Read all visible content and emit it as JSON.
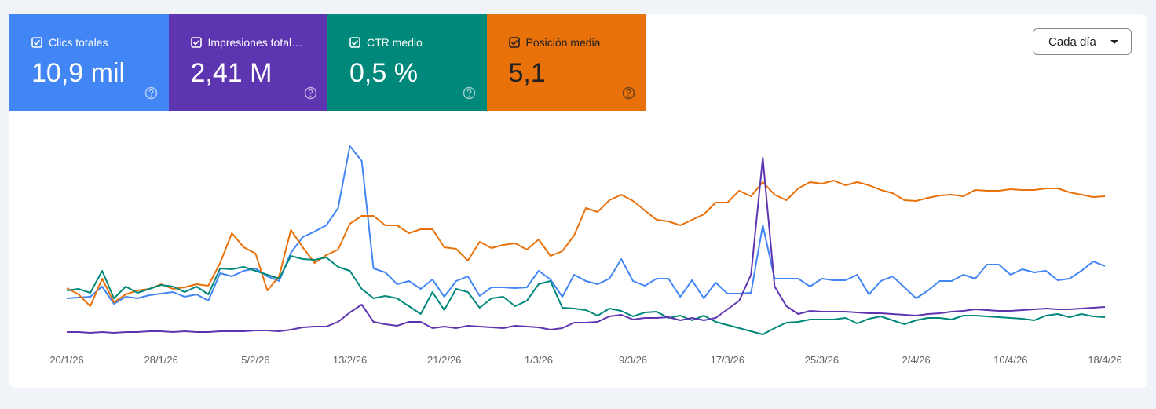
{
  "chart_data": {
    "type": "line",
    "categories": [
      "20/1/26",
      null,
      null,
      null,
      null,
      null,
      null,
      null,
      "28/1/26",
      null,
      null,
      null,
      null,
      null,
      null,
      null,
      "5/2/26",
      null,
      null,
      null,
      null,
      null,
      null,
      null,
      "13/2/26",
      null,
      null,
      null,
      null,
      null,
      null,
      null,
      "21/2/26",
      null,
      null,
      null,
      null,
      null,
      null,
      null,
      "1/3/26",
      null,
      null,
      null,
      null,
      null,
      null,
      null,
      "9/3/26",
      null,
      null,
      null,
      null,
      null,
      null,
      null,
      "17/3/26",
      null,
      null,
      null,
      null,
      null,
      null,
      null,
      "25/3/26",
      null,
      null,
      null,
      null,
      null,
      null,
      null,
      "2/4/26",
      null,
      null,
      null,
      null,
      null,
      null,
      null,
      "10/4/26",
      null,
      null,
      null,
      null,
      null,
      null,
      null,
      "18/4/26"
    ],
    "ylim": [
      0,
      260
    ],
    "series": [
      {
        "name": "Clics totales",
        "summary": "10,9 mil",
        "color": "#4285f4",
        "text_color": "#ffffff",
        "values": [
          60,
          61,
          62,
          75,
          53,
          62,
          60,
          64,
          66,
          68,
          62,
          65,
          57,
          92,
          88,
          95,
          98,
          88,
          82,
          118,
          138,
          145,
          153,
          175,
          254,
          235,
          98,
          93,
          78,
          82,
          72,
          84,
          62,
          82,
          88,
          63,
          74,
          74,
          73,
          74,
          95,
          84,
          62,
          90,
          82,
          78,
          85,
          110,
          82,
          76,
          85,
          85,
          62,
          83,
          60,
          80,
          66,
          66,
          67,
          153,
          85,
          85,
          85,
          75,
          85,
          83,
          83,
          90,
          65,
          82,
          88,
          74,
          60,
          70,
          82,
          82,
          90,
          85,
          103,
          103,
          90,
          97,
          93,
          95,
          83,
          85,
          95,
          107,
          101
        ]
      },
      {
        "name": "Impresiones total…",
        "summary": "2,41 M",
        "color": "#5e35b1",
        "text_color": "#ffffff",
        "values": [
          17,
          17,
          16,
          17,
          16,
          17,
          17,
          18,
          18,
          17,
          18,
          17,
          17,
          18,
          18,
          18,
          19,
          19,
          18,
          20,
          23,
          24,
          24,
          30,
          42,
          52,
          30,
          27,
          25,
          30,
          30,
          22,
          24,
          22,
          25,
          24,
          23,
          22,
          25,
          24,
          23,
          20,
          22,
          29,
          29,
          30,
          37,
          39,
          33,
          35,
          35,
          36,
          32,
          35,
          32,
          35,
          46,
          57,
          90,
          239,
          75,
          50,
          40,
          44,
          43,
          43,
          43,
          42,
          41,
          41,
          40,
          39,
          38,
          40,
          41,
          43,
          44,
          46,
          45,
          44,
          44,
          45,
          46,
          47,
          46,
          46,
          47,
          48,
          49
        ]
      },
      {
        "name": "CTR medio",
        "summary": "0,5 %",
        "color": "#00897b",
        "text_color": "#ffffff",
        "values": [
          70,
          72,
          67,
          95,
          60,
          75,
          67,
          72,
          77,
          75,
          68,
          75,
          65,
          98,
          97,
          100,
          95,
          90,
          85,
          114,
          110,
          109,
          112,
          100,
          95,
          72,
          60,
          63,
          60,
          50,
          40,
          68,
          45,
          72,
          68,
          48,
          60,
          62,
          50,
          57,
          78,
          82,
          48,
          47,
          45,
          38,
          47,
          44,
          37,
          42,
          43,
          35,
          38,
          32,
          38,
          30,
          26,
          22,
          18,
          14,
          22,
          29,
          30,
          33,
          33,
          33,
          35,
          28,
          34,
          37,
          32,
          27,
          32,
          35,
          35,
          33,
          38,
          38,
          37,
          36,
          35,
          34,
          32,
          38,
          40,
          36,
          40,
          37,
          36
        ]
      },
      {
        "name": "Posición media",
        "summary": "5,1",
        "color": "#e8710a",
        "text_color": "#202124",
        "values": [
          73,
          65,
          50,
          85,
          55,
          65,
          70,
          72,
          78,
          72,
          74,
          78,
          76,
          105,
          143,
          125,
          117,
          70,
          88,
          147,
          125,
          105,
          115,
          122,
          155,
          165,
          165,
          153,
          153,
          143,
          148,
          148,
          125,
          123,
          108,
          132,
          124,
          128,
          130,
          122,
          135,
          114,
          120,
          140,
          175,
          170,
          185,
          192,
          184,
          172,
          160,
          158,
          153,
          160,
          167,
          182,
          182,
          197,
          190,
          208,
          192,
          185,
          200,
          208,
          206,
          210,
          204,
          208,
          204,
          198,
          194,
          185,
          184,
          188,
          191,
          192,
          190,
          198,
          197,
          197,
          199,
          198,
          198,
          200,
          200,
          195,
          192,
          189,
          190
        ]
      }
    ]
  },
  "controls": {
    "interval": "Cada día"
  }
}
